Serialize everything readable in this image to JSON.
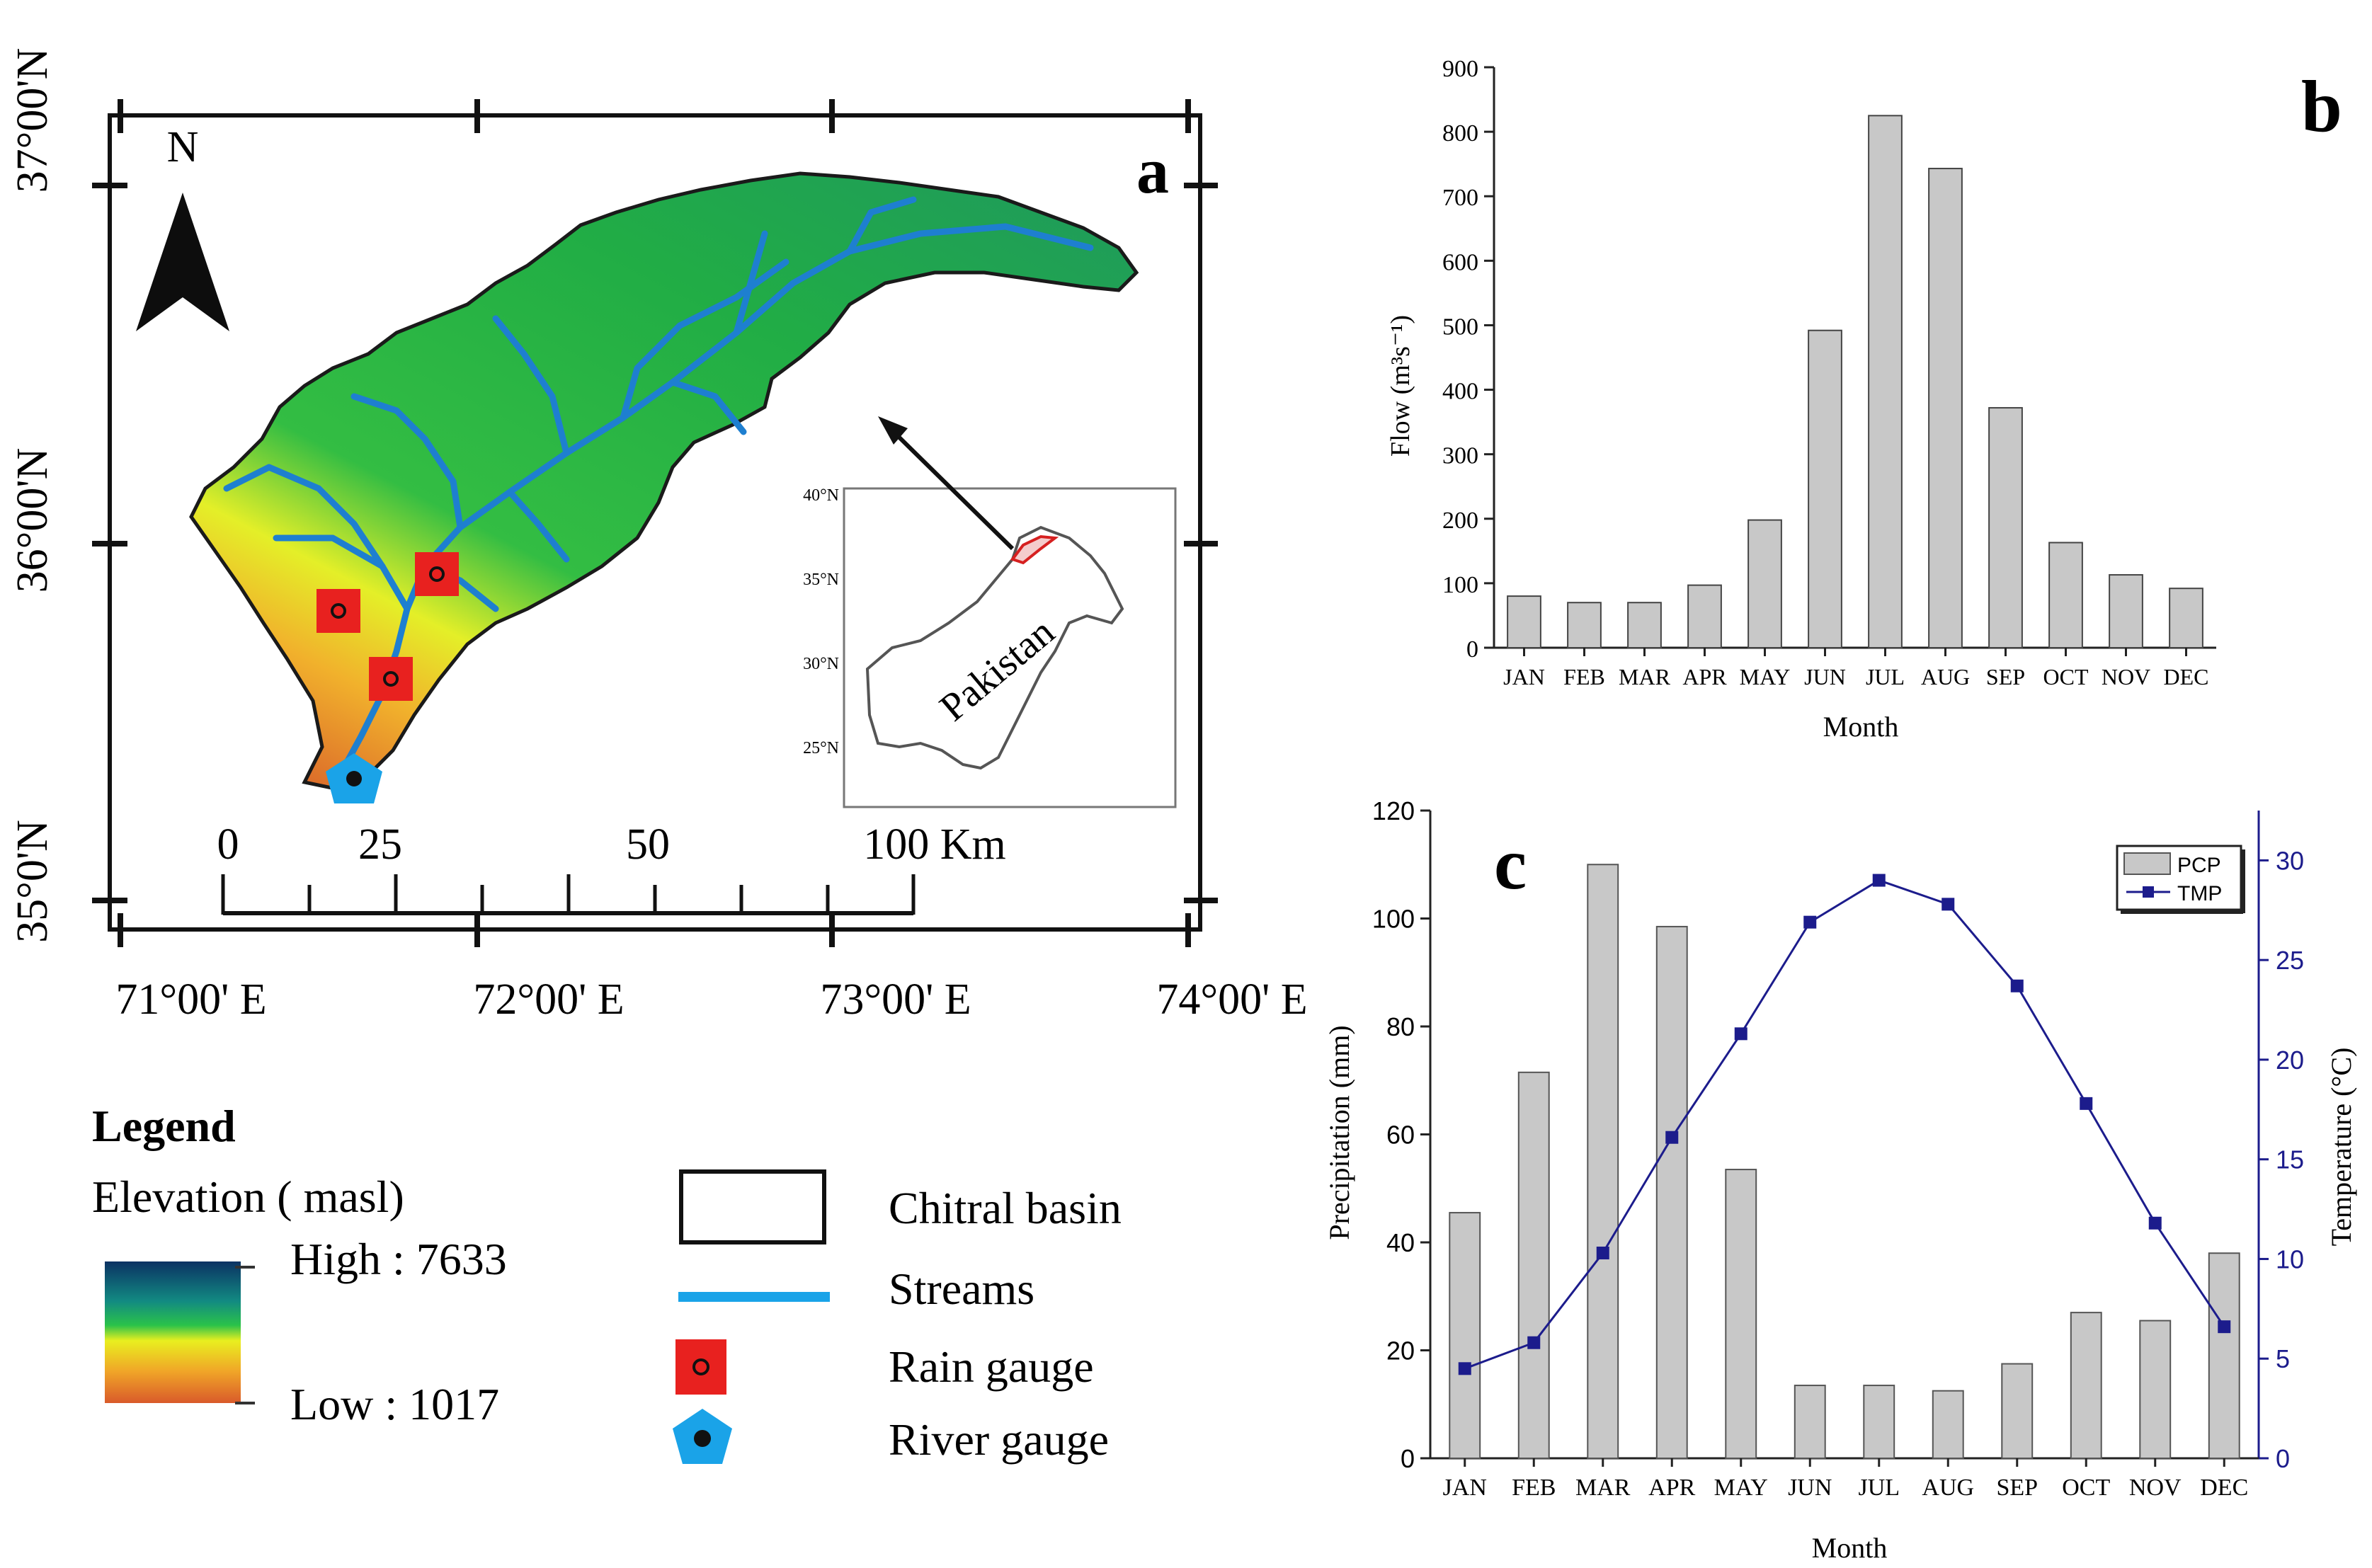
{
  "panel_a": {
    "label": "a",
    "north_label": "N",
    "lat_labels": [
      "37°00'N",
      "36°00'N",
      "35°0'N"
    ],
    "lon_labels": [
      "71°00' E",
      "72°00' E",
      "73°00' E",
      "74°00' E"
    ],
    "scale_labels": [
      "0",
      "25",
      "50",
      "100 Km"
    ],
    "inset": {
      "country": "Pakistan",
      "lat_labels": [
        "40°N",
        "35°N",
        "30°N",
        "25°N"
      ]
    },
    "legend": {
      "title": "Legend",
      "elevation_title": "Elevation ( masl)",
      "high": "High : 7633",
      "low": "Low : 1017",
      "items": [
        "Chitral basin",
        "Streams",
        "Rain gauge",
        "River gauge"
      ]
    },
    "colors": {
      "rain_gauge": "#e8211f",
      "river_gauge": "#1aa3e8",
      "stream": "#1e7fd0",
      "elev_high": "#0b3d6e",
      "elev_mid": "#22b24c",
      "elev_low": "#e2702a"
    }
  },
  "panel_b": {
    "label": "b"
  },
  "panel_c": {
    "label": "c",
    "legend_pcp": "PCP",
    "legend_tmp": "TMP"
  },
  "chart_data": [
    {
      "id": "b",
      "type": "bar",
      "title": "",
      "categories": [
        "JAN",
        "FEB",
        "MAR",
        "APR",
        "MAY",
        "JUN",
        "JUL",
        "AUG",
        "SEP",
        "OCT",
        "NOV",
        "DEC"
      ],
      "values": [
        80,
        70,
        70,
        97,
        198,
        492,
        825,
        743,
        372,
        163,
        113,
        92
      ],
      "xlabel": "Month",
      "ylabel": "Flow (m³s⁻¹)",
      "ylim": [
        0,
        900
      ],
      "yticks": [
        0,
        100,
        200,
        300,
        400,
        500,
        600,
        700,
        800,
        900
      ],
      "bar_color": "#c8c8c8"
    },
    {
      "id": "c",
      "type": "bar",
      "title": "",
      "categories": [
        "JAN",
        "FEB",
        "MAR",
        "APR",
        "MAY",
        "JUN",
        "JUL",
        "AUG",
        "SEP",
        "OCT",
        "NOV",
        "DEC"
      ],
      "series": [
        {
          "name": "PCP",
          "kind": "bar",
          "axis": "left",
          "values": [
            45.5,
            71.5,
            110,
            98.5,
            53.5,
            13.5,
            13.5,
            12.5,
            17.5,
            27,
            25.5,
            38
          ]
        },
        {
          "name": "TMP",
          "kind": "line",
          "axis": "right",
          "values": [
            4.5,
            5.8,
            10.3,
            16.1,
            21.3,
            26.9,
            29,
            27.8,
            23.7,
            17.8,
            11.8,
            6.6
          ]
        }
      ],
      "xlabel": "Month",
      "ylabel": "Precipitation (mm)",
      "ylabel_right": "Temperature (°C)",
      "ylim": [
        0,
        120
      ],
      "yticks": [
        0,
        20,
        40,
        60,
        80,
        100,
        120
      ],
      "ylim_right": [
        0,
        32.5
      ],
      "yticks_right": [
        0,
        5,
        10,
        15,
        20,
        25,
        30
      ],
      "bar_color": "#c8c8c8",
      "line_color": "#1c1c8c"
    }
  ]
}
